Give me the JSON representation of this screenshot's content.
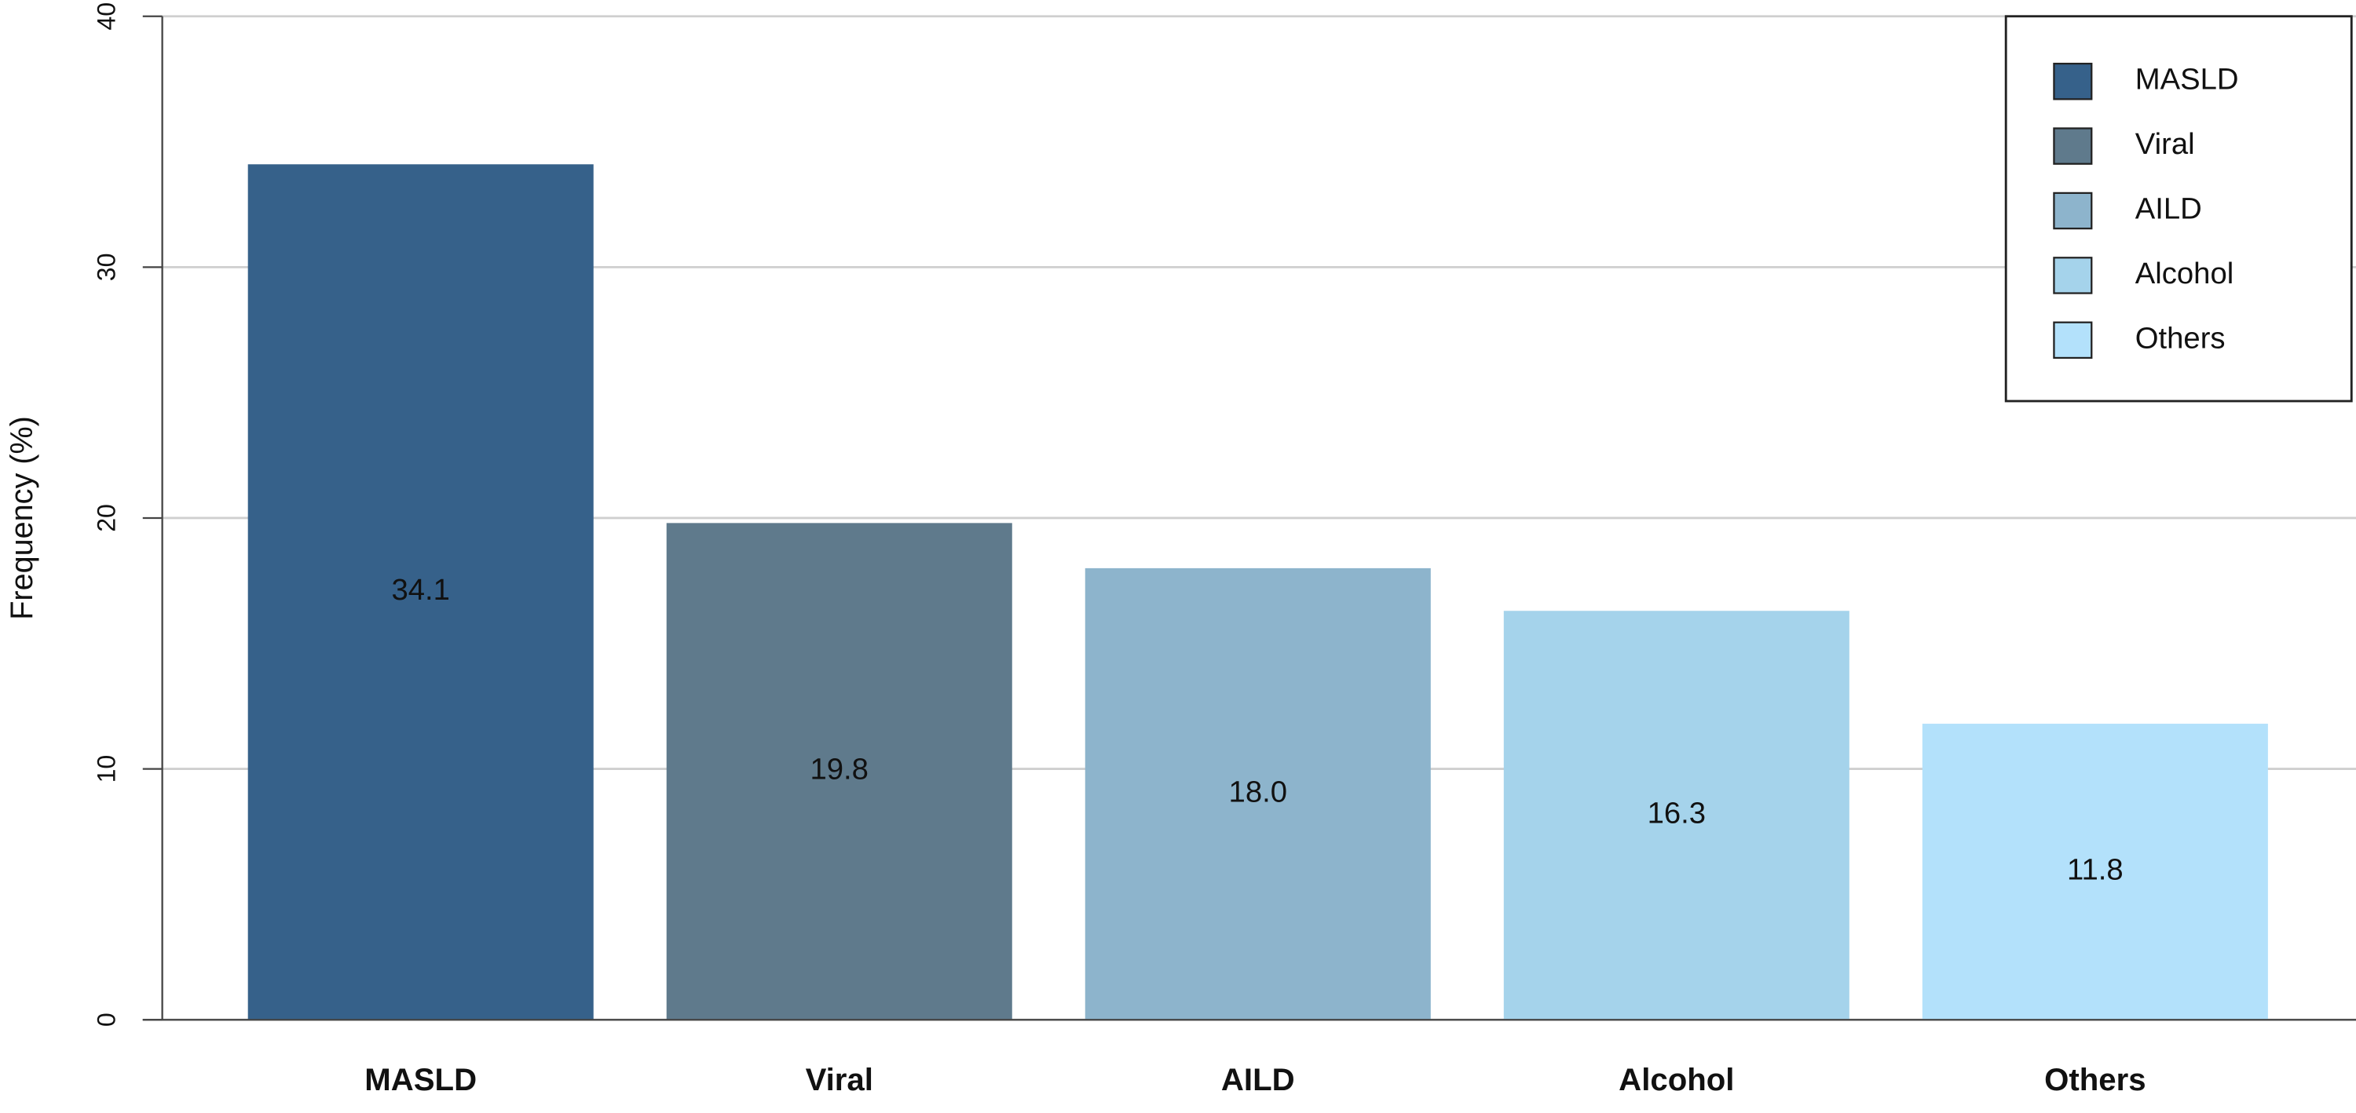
{
  "chart_data": {
    "type": "bar",
    "y_label": "Frequency (%)",
    "categories": [
      "MASLD",
      "Viral",
      "AILD",
      "Alcohol",
      "Others"
    ],
    "values": [
      34.1,
      19.8,
      18.0,
      16.3,
      11.8
    ],
    "value_labels": [
      "34.1",
      "19.8",
      "18.0",
      "16.3",
      "11.8"
    ],
    "colors": [
      "#36618a",
      "#5f7a8c",
      "#8db4cc",
      "#a5d3eb",
      "#b3e1fb"
    ],
    "ylim": [
      0,
      40
    ],
    "yticks": [
      0,
      10,
      20,
      30,
      40
    ],
    "grid": true,
    "legend": "top-right"
  }
}
